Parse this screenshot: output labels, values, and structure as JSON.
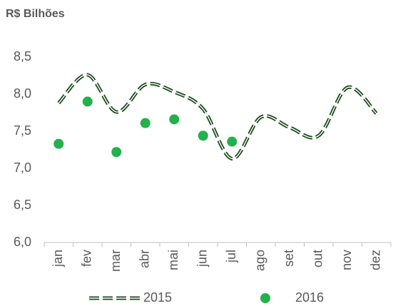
{
  "chart_data": {
    "type": "line",
    "title": "R$ Bilhões",
    "categories": [
      "jan",
      "fev",
      "mar",
      "abr",
      "mai",
      "jun",
      "jul",
      "ago",
      "set",
      "out",
      "nov",
      "dez"
    ],
    "series": [
      {
        "name": "2015",
        "type": "line",
        "color": "#1e4d1e",
        "values": [
          7.88,
          8.26,
          7.76,
          8.13,
          8.03,
          7.8,
          7.13,
          7.69,
          7.55,
          7.44,
          8.09,
          7.74
        ]
      },
      {
        "name": "2016",
        "type": "scatter",
        "color": "#22b14c",
        "values": [
          7.33,
          7.9,
          7.22,
          7.61,
          7.66,
          7.44,
          7.36,
          null,
          null,
          null,
          null,
          null
        ]
      }
    ],
    "ylim": [
      6.0,
      8.5
    ],
    "yticks": [
      {
        "value": 6.0,
        "label": "6,0"
      },
      {
        "value": 6.5,
        "label": "6,5"
      },
      {
        "value": 7.0,
        "label": "7,0"
      },
      {
        "value": 7.5,
        "label": "7,5"
      },
      {
        "value": 8.0,
        "label": "8,0"
      },
      {
        "value": 8.5,
        "label": "8,5"
      }
    ],
    "grid": false,
    "legend": "bottom"
  }
}
